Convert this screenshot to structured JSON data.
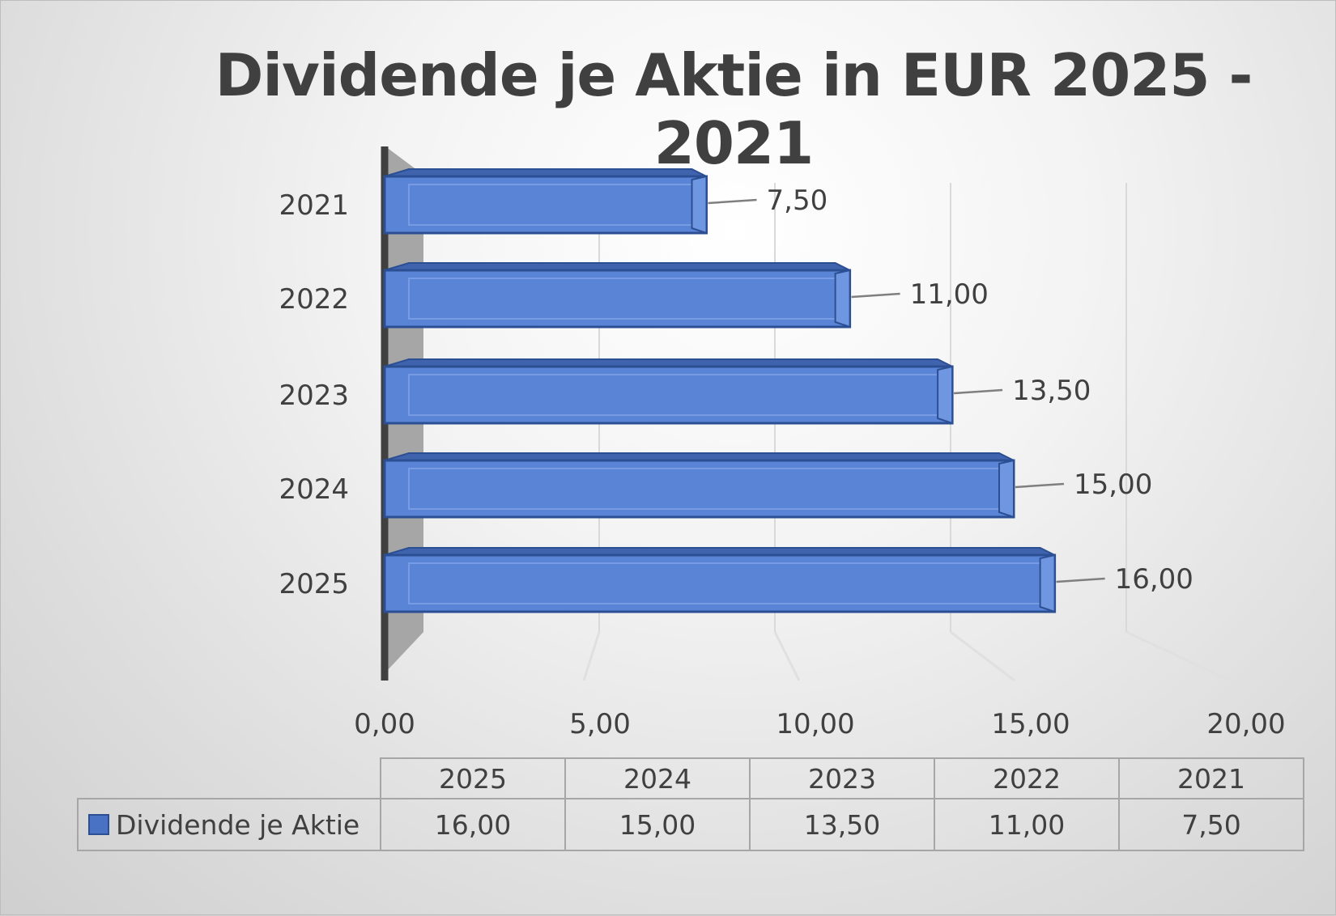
{
  "chart_data": {
    "type": "bar",
    "orientation": "horizontal",
    "title": "Dividende je Aktie in EUR 2025 - 2021",
    "categories": [
      "2025",
      "2024",
      "2023",
      "2022",
      "2021"
    ],
    "series": [
      {
        "name": "Dividende je Aktie",
        "values": [
          16.0,
          15.0,
          13.5,
          11.0,
          7.5
        ],
        "color": "#4a72c4"
      }
    ],
    "data_labels": [
      "16,00",
      "15,00",
      "13,50",
      "11,00",
      "7,50"
    ],
    "x_ticks": [
      "0,00",
      "5,00",
      "10,00",
      "15,00",
      "20,00"
    ],
    "xlim": [
      0,
      20
    ],
    "grid": true,
    "legend": "data-table-below",
    "data_table": {
      "header": [
        "2025",
        "2024",
        "2023",
        "2022",
        "2021"
      ],
      "row_label": "Dividende je Aktie",
      "row_values": [
        "16,00",
        "15,00",
        "13,50",
        "11,00",
        "7,50"
      ]
    }
  }
}
